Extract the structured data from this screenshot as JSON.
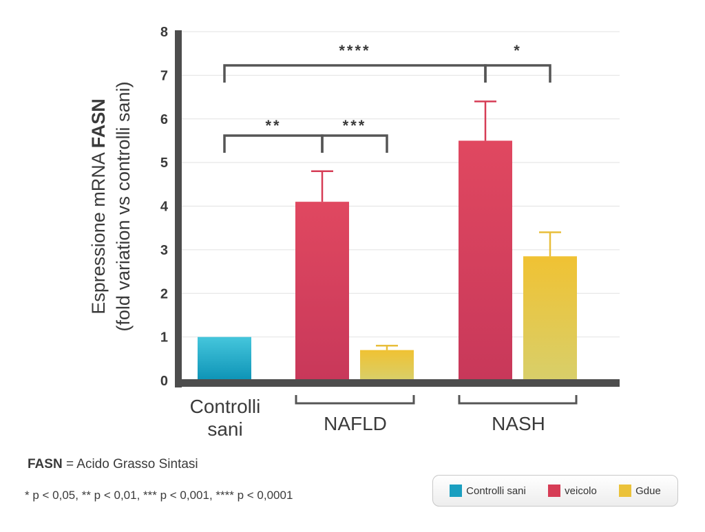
{
  "chart_data": {
    "type": "bar",
    "title": "",
    "ylabel_line1_prefix": "Espressione mRNA ",
    "ylabel_line1_bold": "FASN",
    "ylabel_line2": "(fold variation vs controlli sani)",
    "ylim": [
      0,
      8
    ],
    "yticks": [
      "0",
      "1",
      "2",
      "3",
      "4",
      "5",
      "6",
      "7",
      "8"
    ],
    "grid": true,
    "bars": [
      {
        "series": "Controlli sani",
        "value": 1.0,
        "error": 0
      },
      {
        "series": "veicolo",
        "value": 4.1,
        "error": 0.7
      },
      {
        "series": "Gdue",
        "value": 0.7,
        "error": 0.1
      },
      {
        "series": "veicolo",
        "value": 5.5,
        "error": 0.9
      },
      {
        "series": "Gdue",
        "value": 2.85,
        "error": 0.55
      }
    ],
    "groups": [
      {
        "label_lines": [
          "Controlli",
          "sani"
        ]
      },
      {
        "label_lines": [
          "NAFLD"
        ]
      },
      {
        "label_lines": [
          "NASH"
        ]
      }
    ],
    "significance": [
      {
        "stars": "**",
        "from_bar": 0,
        "to_bar": 1
      },
      {
        "stars": "***",
        "from_bar": 1,
        "to_bar": 2
      },
      {
        "stars": "****",
        "from_bar": 0,
        "to_bar": 3
      },
      {
        "stars": "*",
        "from_bar": 3,
        "to_bar": 4
      }
    ],
    "legend": [
      {
        "name": "Controlli sani",
        "color": "#1a9fc0"
      },
      {
        "name": "veicolo",
        "color": "#d63c55"
      },
      {
        "name": "Gdue",
        "color": "#ebc23a"
      }
    ],
    "legend_position": "bottom-right"
  },
  "footnote": {
    "abbr": "FASN",
    "definition": " = Acido Grasso Sintasi",
    "significance": "* p < 0,05, ** p < 0,01, *** p < 0,001, **** p < 0,0001"
  }
}
